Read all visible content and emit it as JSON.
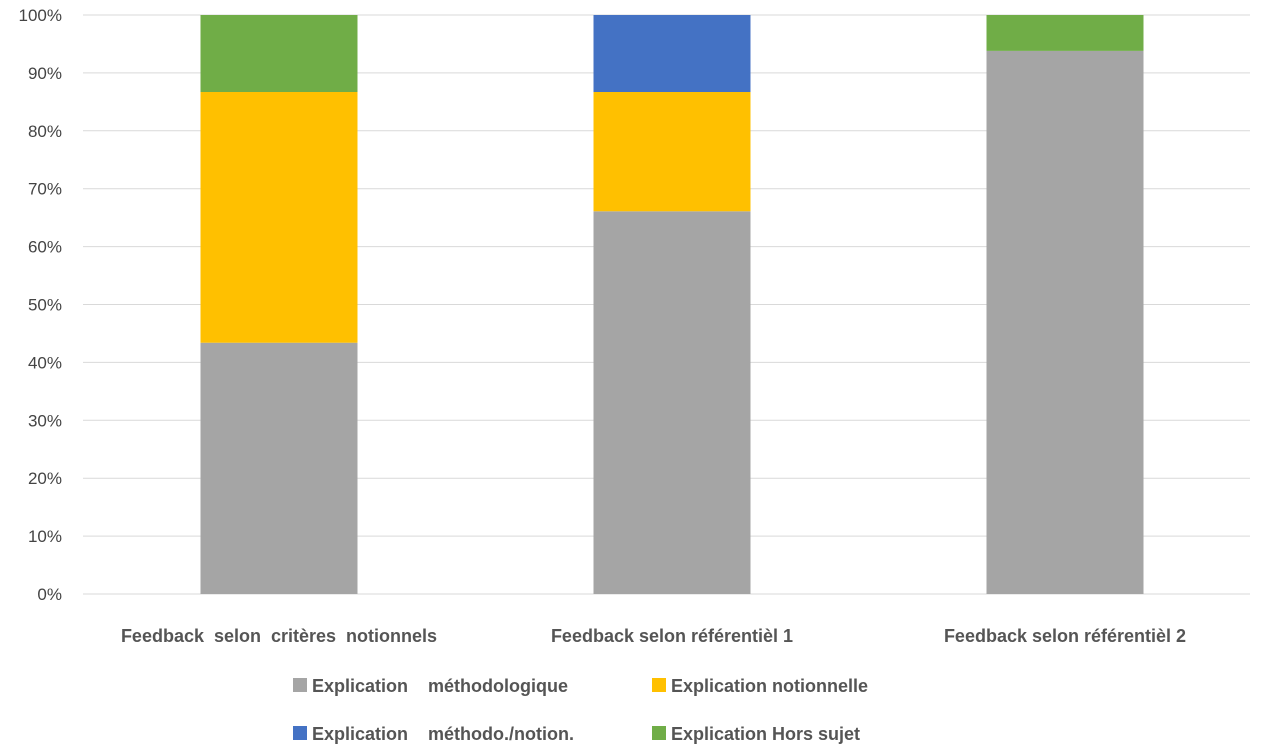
{
  "chart_data": {
    "type": "bar",
    "stacked": true,
    "percent_stacked": true,
    "title": "",
    "xlabel": "",
    "ylabel": "",
    "ylim": [
      0,
      100
    ],
    "y_ticks": [
      "0%",
      "10%",
      "20%",
      "30%",
      "40%",
      "50%",
      "60%",
      "70%",
      "80%",
      "90%",
      "100%"
    ],
    "grid": true,
    "legend_position": "bottom",
    "categories": [
      "Feedback  selon  critères  notionnels",
      "Feedback selon référentièl 1",
      "Feedback selon référentièl 2"
    ],
    "series": [
      {
        "name": "Explication    méthodologique",
        "color": "#a5a5a5",
        "values": [
          43.4,
          66.1,
          93.8
        ]
      },
      {
        "name": "Explication notionnelle",
        "color": "#ffc000",
        "values": [
          43.3,
          20.6,
          0
        ]
      },
      {
        "name": "Explication    méthodo./notion.",
        "color": "#4472c4",
        "values": [
          0,
          13.3,
          0
        ]
      },
      {
        "name": "Explication Hors sujet",
        "color": "#70ad47",
        "values": [
          13.3,
          0,
          6.2
        ]
      }
    ]
  }
}
